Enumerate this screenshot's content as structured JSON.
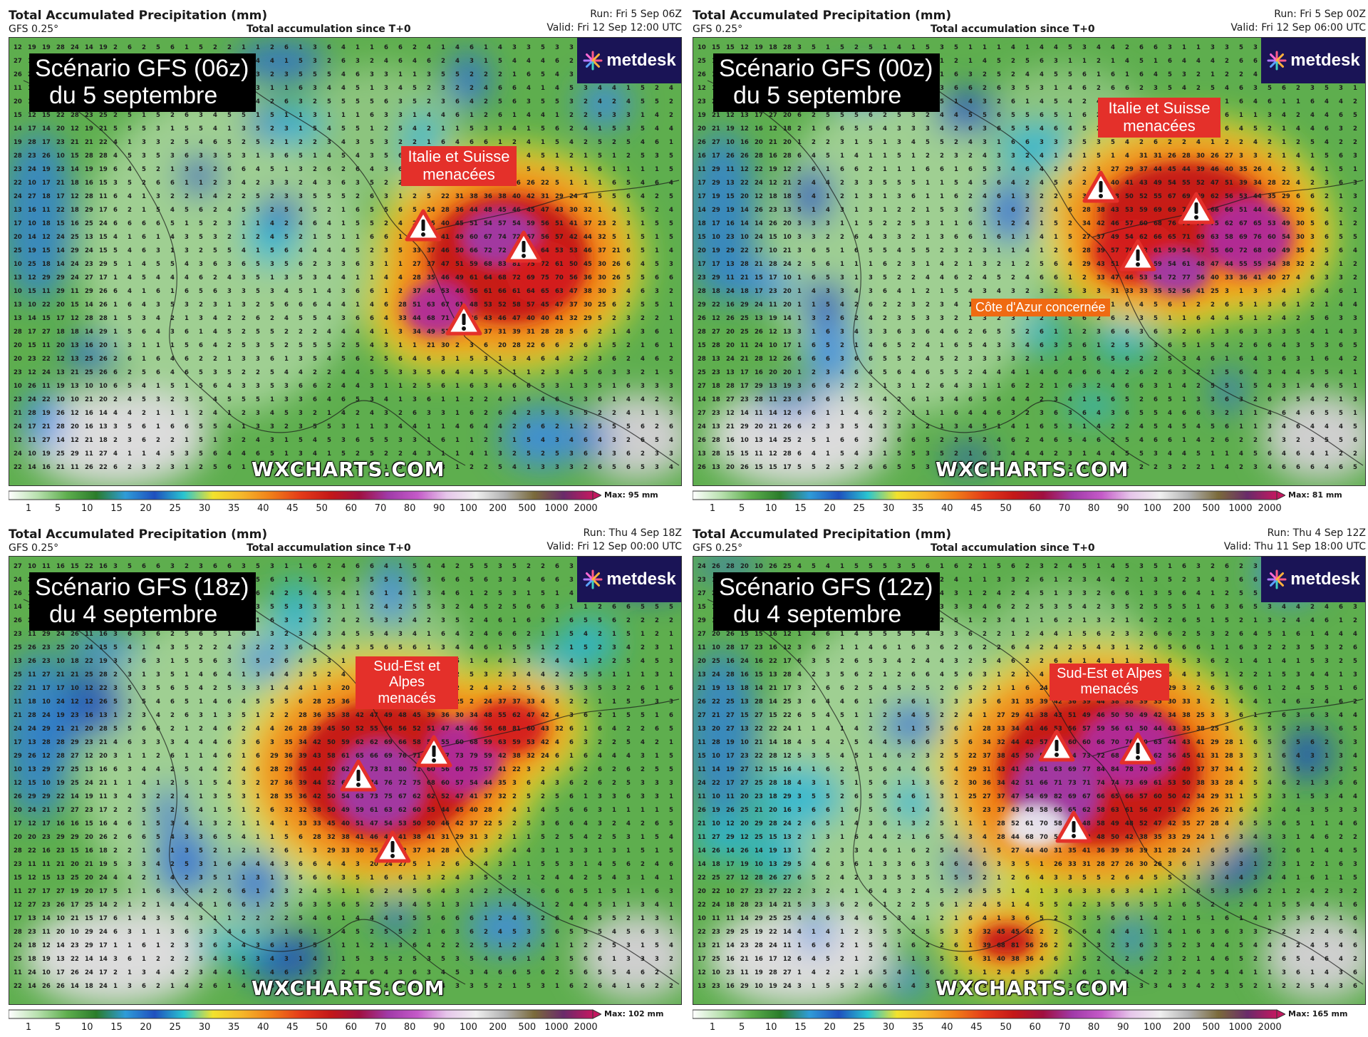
{
  "panels": [
    {
      "title": "Total Accumulated Precipitation (mm)",
      "model": "GFS 0.25°",
      "accumulation": "Total accumulation since T+0",
      "run": "Run: Fri 5 Sep 06Z",
      "valid": "Valid: Fri 12 Sep 12:00 UTC",
      "scenario_line1": "Scénario GFS (06z)",
      "scenario_line2": "du 5 septembre",
      "alert_line1": "Italie et Suisse",
      "alert_line2": "menacées",
      "extra_label": "",
      "max_label": "Max: 95 mm",
      "watermark": "WXCHARTS.COM"
    },
    {
      "title": "Total Accumulated Precipitation (mm)",
      "model": "GFS 0.25°",
      "accumulation": "Total accumulation since T+0",
      "run": "Run: Fri 5 Sep 00Z",
      "valid": "Valid: Fri 12 Sep 06:00 UTC",
      "scenario_line1": "Scénario GFS (00z)",
      "scenario_line2": "du 5 septembre",
      "alert_line1": "Italie et Suisse",
      "alert_line2": "menacées",
      "extra_label": "Côte d'Azur concernée",
      "max_label": "Max: 81 mm",
      "watermark": "WXCHARTS.COM"
    },
    {
      "title": "Total Accumulated Precipitation (mm)",
      "model": "GFS 0.25°",
      "accumulation": "Total accumulation since T+0",
      "run": "Run: Thu 4 Sep 18Z",
      "valid": "Valid: Fri 12 Sep 00:00 UTC",
      "scenario_line1": "Scénario GFS (18z)",
      "scenario_line2": "du 4 septembre",
      "alert_line1": "Sud-Est et Alpes",
      "alert_line2": "menacés",
      "extra_label": "",
      "max_label": "Max: 102 mm",
      "watermark": "WXCHARTS.COM"
    },
    {
      "title": "Total Accumulated Precipitation (mm)",
      "model": "GFS 0.25°",
      "accumulation": "Total accumulation since T+0",
      "run": "Run: Thu 4 Sep 12Z",
      "valid": "Valid: Thu 11 Sep 18:00 UTC",
      "scenario_line1": "Scénario GFS (12z)",
      "scenario_line2": "du 4 septembre",
      "alert_line1": "Sud-Est et Alpes",
      "alert_line2": "menacés",
      "extra_label": "",
      "max_label": "Max: 165 mm",
      "watermark": "WXCHARTS.COM"
    }
  ],
  "logo_text": "metdesk",
  "colorbar_ticks": [
    "1",
    "5",
    "10",
    "15",
    "20",
    "25",
    "30",
    "35",
    "40",
    "45",
    "50",
    "60",
    "70",
    "80",
    "90",
    "100",
    "200",
    "500",
    "1000",
    "2000"
  ],
  "colors": {
    "alert_red": "#e4302a",
    "annotation_orange": "#ef6a12",
    "logo_bg": "#1a1456",
    "low_precip_green": "#5eae4e",
    "high_precip_red": "#c41818",
    "extreme_precip_purple": "#a03aa8"
  },
  "icons": [
    "warning-triangle-icon",
    "metdesk-logo-icon"
  ]
}
